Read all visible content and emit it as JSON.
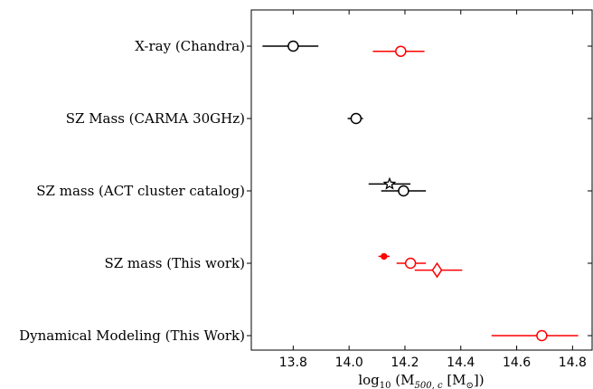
{
  "chart_data": {
    "type": "scatter",
    "subtype": "forest-plot-errorbars",
    "xlabel_parts": {
      "pre": "log",
      "sub10": "10",
      "mid": " (M",
      "sub_mass": "500, c",
      "post_a": " [M",
      "sub_sun": "⊙",
      "post_b": "])"
    },
    "xlim": [
      13.65,
      14.87
    ],
    "xticks": [
      "13.8",
      "14.0",
      "14.2",
      "14.4",
      "14.6",
      "14.8"
    ],
    "xtick_values": [
      13.8,
      14.0,
      14.2,
      14.4,
      14.6,
      14.8
    ],
    "categories": [
      "X-ray (Chandra)",
      "SZ Mass (CARMA 30GHz)",
      "SZ mass (ACT cluster catalog)",
      "SZ mass (This work)",
      "Dynamical Modeling (This Work)"
    ],
    "points": [
      {
        "category": 0,
        "offset": 0,
        "x": 13.8,
        "xerr": [
          0.11,
          0.09
        ],
        "marker": "circle-open",
        "color": "#000000"
      },
      {
        "category": 0,
        "offset": 0.15,
        "x": 14.185,
        "xerr": [
          0.1,
          0.085
        ],
        "marker": "circle-open",
        "color": "#ff0000"
      },
      {
        "category": 1,
        "offset": 0,
        "x": 14.025,
        "xerr": [
          0.03,
          0.025
        ],
        "marker": "circle-open",
        "color": "#000000"
      },
      {
        "category": 2,
        "offset": -0.2,
        "x": 14.145,
        "xerr": [
          0.075,
          0.075
        ],
        "marker": "star-open",
        "color": "#000000"
      },
      {
        "category": 2,
        "offset": 0,
        "x": 14.195,
        "xerr": [
          0.08,
          0.08
        ],
        "marker": "circle-open",
        "color": "#000000"
      },
      {
        "category": 3,
        "offset": -0.2,
        "x": 14.125,
        "xerr": [
          0.02,
          0.02
        ],
        "marker": "circle-filled",
        "color": "#ff0000"
      },
      {
        "category": 3,
        "offset": 0,
        "x": 14.22,
        "xerr": [
          0.05,
          0.055
        ],
        "marker": "circle-open",
        "color": "#ff0000"
      },
      {
        "category": 3,
        "offset": 0.2,
        "x": 14.315,
        "xerr": [
          0.08,
          0.09
        ],
        "marker": "diamond-open",
        "color": "#ff0000"
      },
      {
        "category": 4,
        "offset": 0,
        "x": 14.69,
        "xerr": [
          0.18,
          0.13
        ],
        "marker": "circle-open",
        "color": "#ff0000"
      }
    ],
    "grid": false
  }
}
